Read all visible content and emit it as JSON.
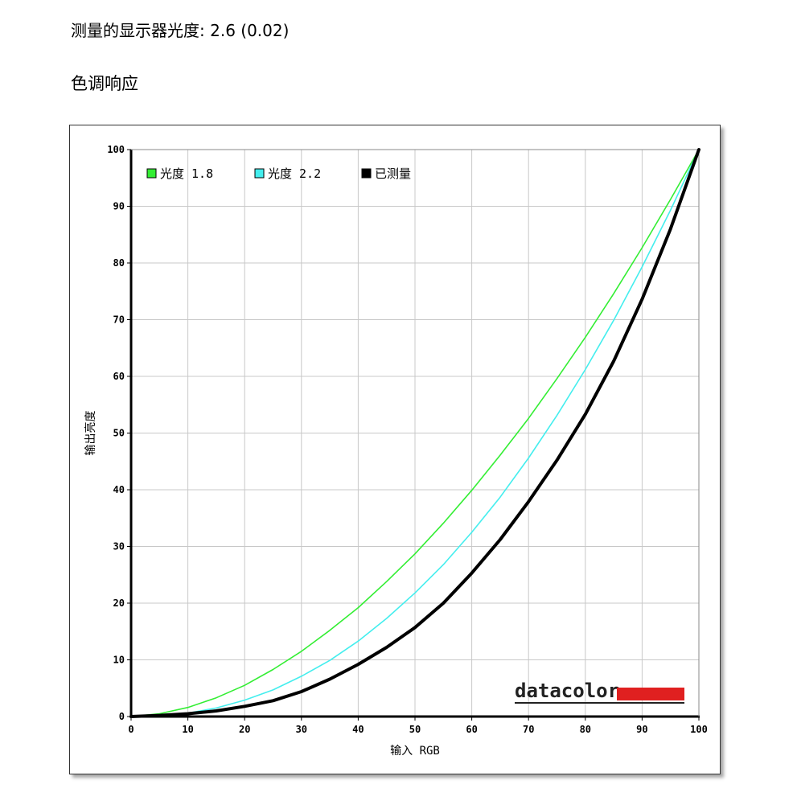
{
  "gamma": {
    "label": "测量的显示器光度:",
    "value": "2.6 (0.02)"
  },
  "section_title": "色调响应",
  "chart_data": {
    "type": "line",
    "xlabel": "输入 RGB",
    "ylabel": "输出亮度",
    "xlim": [
      0,
      100
    ],
    "ylim": [
      0,
      100
    ],
    "xticks": [
      0,
      10,
      20,
      30,
      40,
      50,
      60,
      70,
      80,
      90,
      100
    ],
    "yticks": [
      0,
      10,
      20,
      30,
      40,
      50,
      60,
      70,
      80,
      90,
      100
    ],
    "grid": true,
    "legend_position": "top-left",
    "x": [
      0,
      5,
      10,
      15,
      20,
      25,
      30,
      35,
      40,
      45,
      50,
      55,
      60,
      65,
      70,
      75,
      80,
      85,
      90,
      95,
      100
    ],
    "series": [
      {
        "name": "光度 1.8",
        "color": "#33ee33",
        "values": [
          0,
          0.5,
          1.6,
          3.3,
          5.5,
          8.3,
          11.5,
          15.2,
          19.2,
          23.8,
          28.7,
          34.1,
          39.9,
          46.1,
          52.6,
          59.6,
          66.9,
          74.6,
          82.7,
          91.2,
          100
        ]
      },
      {
        "name": "光度 2.2",
        "color": "#44eeee",
        "values": [
          0,
          0.1,
          0.6,
          1.5,
          2.9,
          4.7,
          7.1,
          9.9,
          13.3,
          17.3,
          21.8,
          26.8,
          32.5,
          38.7,
          45.6,
          53.1,
          61.2,
          69.9,
          79.3,
          89.3,
          100
        ]
      },
      {
        "name": "已测量",
        "color": "#000000",
        "values": [
          0,
          0.2,
          0.5,
          1.0,
          1.8,
          2.8,
          4.4,
          6.6,
          9.2,
          12.2,
          15.7,
          20.0,
          25.3,
          31.2,
          37.9,
          45.2,
          53.3,
          62.7,
          73.6,
          86.0,
          100
        ]
      }
    ]
  },
  "watermark": {
    "text": "datacolor",
    "bar_color": "#e02020"
  }
}
